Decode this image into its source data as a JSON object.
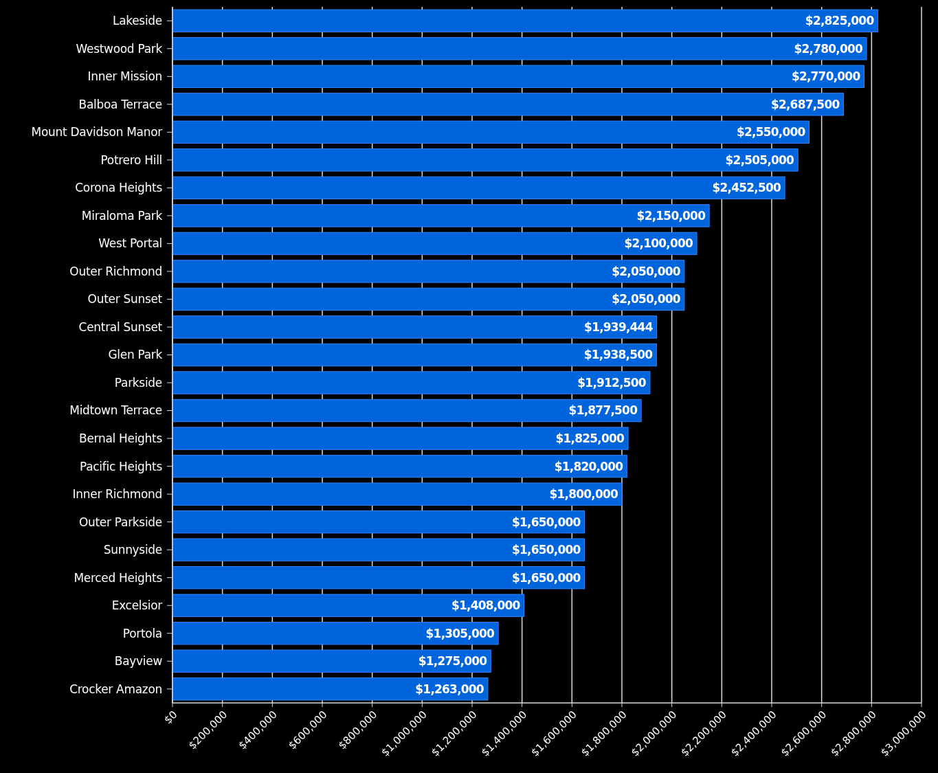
{
  "chart_data": {
    "type": "bar",
    "orientation": "horizontal",
    "categories": [
      "Lakeside",
      "Westwood Park",
      "Inner Mission",
      "Balboa Terrace",
      "Mount Davidson Manor",
      "Potrero Hill",
      "Corona Heights",
      "Miraloma Park",
      "West Portal",
      "Outer Richmond",
      "Outer Sunset",
      "Central Sunset",
      "Glen Park",
      "Parkside",
      "Midtown Terrace",
      "Bernal Heights",
      "Pacific Heights",
      "Inner Richmond",
      "Outer Parkside",
      "Sunnyside",
      "Merced Heights",
      "Excelsior",
      "Portola",
      "Bayview",
      "Crocker Amazon"
    ],
    "values": [
      2825000,
      2780000,
      2770000,
      2687500,
      2550000,
      2505000,
      2452500,
      2150000,
      2100000,
      2050000,
      2050000,
      1939444,
      1938500,
      1912500,
      1877500,
      1825000,
      1820000,
      1800000,
      1650000,
      1650000,
      1650000,
      1408000,
      1305000,
      1275000,
      1263000
    ],
    "color": "#0064dc",
    "xlim": [
      0,
      3000000
    ],
    "xticks": [
      {
        "value": 0,
        "label": "$0"
      },
      {
        "value": 200000,
        "label": "$200,000"
      },
      {
        "value": 400000,
        "label": "$400,000"
      },
      {
        "value": 600000,
        "label": "$600,000"
      },
      {
        "value": 800000,
        "label": "$800,000"
      },
      {
        "value": 1000000,
        "label": "$1,000,000"
      },
      {
        "value": 1200000,
        "label": "$1,200,000"
      },
      {
        "value": 1400000,
        "label": "$1,400,000"
      },
      {
        "value": 1600000,
        "label": "$1,600,000"
      },
      {
        "value": 1800000,
        "label": "$1,800,000"
      },
      {
        "value": 2000000,
        "label": "$2,000,000"
      },
      {
        "value": 2200000,
        "label": "$2,200,000"
      },
      {
        "value": 2400000,
        "label": "$2,400,000"
      },
      {
        "value": 2600000,
        "label": "$2,600,000"
      },
      {
        "value": 2800000,
        "label": "$2,800,000"
      },
      {
        "value": 3000000,
        "label": "$3,000,000"
      }
    ],
    "value_labels": [
      "$2,825,000",
      "$2,780,000",
      "$2,770,000",
      "$2,687,500",
      "$2,550,000",
      "$2,505,000",
      "$2,452,500",
      "$2,150,000",
      "$2,100,000",
      "$2,050,000",
      "$2,050,000",
      "$1,939,444",
      "$1,938,500",
      "$1,912,500",
      "$1,877,500",
      "$1,825,000",
      "$1,820,000",
      "$1,800,000",
      "$1,650,000",
      "$1,650,000",
      "$1,650,000",
      "$1,408,000",
      "$1,305,000",
      "$1,275,000",
      "$1,263,000"
    ],
    "grid": "x"
  }
}
